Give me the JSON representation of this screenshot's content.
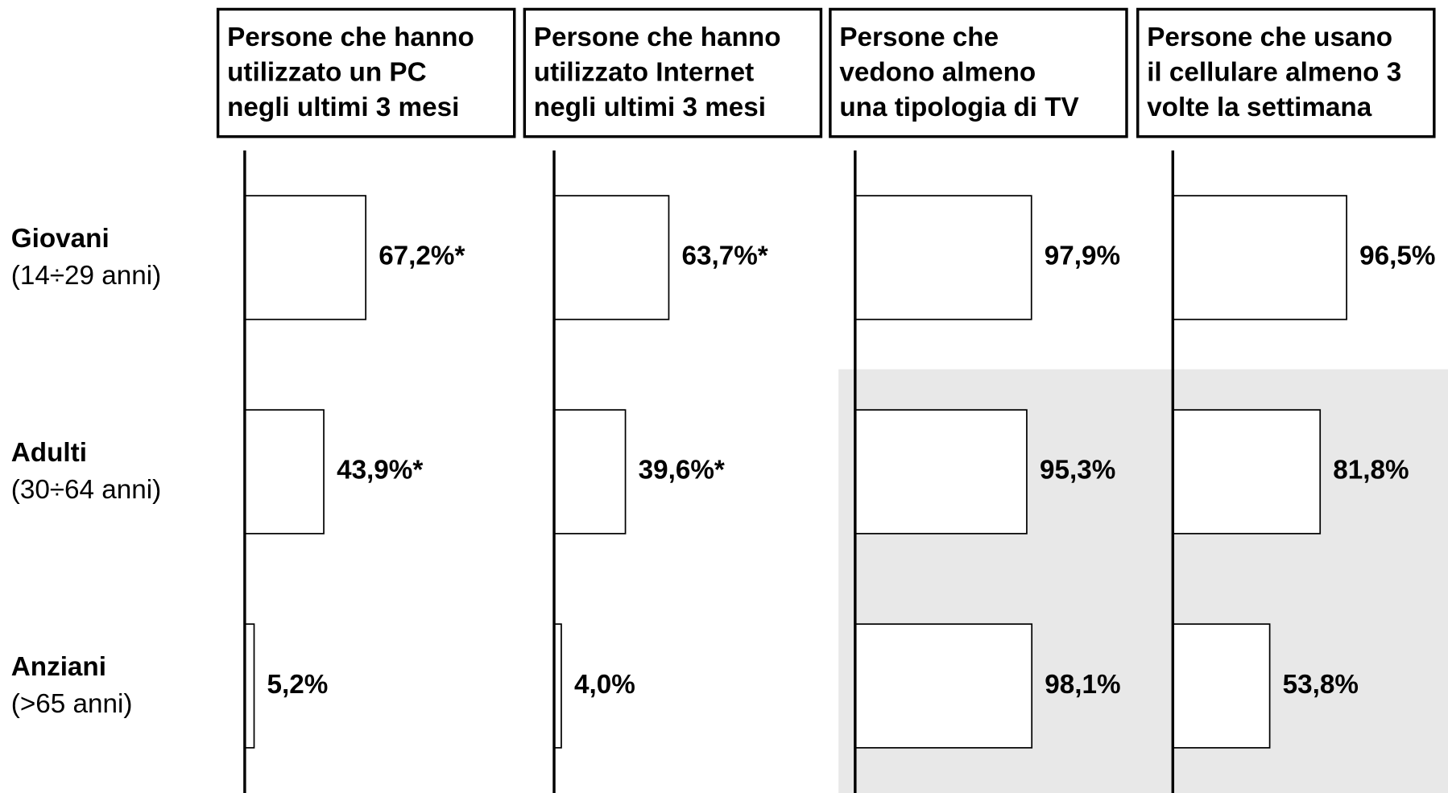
{
  "rows": [
    {
      "name": "Giovani",
      "range": "(14÷29 anni)"
    },
    {
      "name": "Adulti",
      "range": "(30÷64 anni)"
    },
    {
      "name": "Anziani",
      "range": "(>65 anni)"
    }
  ],
  "chart_data": [
    {
      "type": "bar",
      "orientation": "horizontal",
      "title": [
        "Persone che hanno",
        "utilizzato un PC",
        "negli ultimi 3 mesi"
      ],
      "values": [
        67.2,
        43.9,
        5.2
      ],
      "value_labels": [
        "67,2%*",
        "43,9%*",
        "5,2%"
      ],
      "xlim": [
        0,
        100
      ],
      "color": "#ffffff"
    },
    {
      "type": "bar",
      "orientation": "horizontal",
      "title": [
        "Persone che hanno",
        "utilizzato Internet",
        "negli ultimi 3 mesi"
      ],
      "values": [
        63.7,
        39.6,
        4.0
      ],
      "value_labels": [
        "63,7%*",
        "39,6%*",
        "4,0%"
      ],
      "xlim": [
        0,
        100
      ],
      "color": "#ffffff"
    },
    {
      "type": "bar",
      "orientation": "horizontal",
      "title": [
        "Persone che",
        "vedono almeno",
        "una tipologia di TV"
      ],
      "values": [
        97.9,
        95.3,
        98.1
      ],
      "value_labels": [
        "97,9%",
        "95,3%",
        "98,1%"
      ],
      "xlim": [
        0,
        100
      ],
      "color": "#ffffff"
    },
    {
      "type": "bar",
      "orientation": "horizontal",
      "title": [
        "Persone che usano",
        "il cellulare almeno 3",
        "volte la settimana"
      ],
      "values": [
        96.5,
        81.8,
        53.8
      ],
      "value_labels": [
        "96,5%",
        "81,8%",
        "53,8%"
      ],
      "xlim": [
        0,
        100
      ],
      "color": "#ffffff"
    }
  ]
}
